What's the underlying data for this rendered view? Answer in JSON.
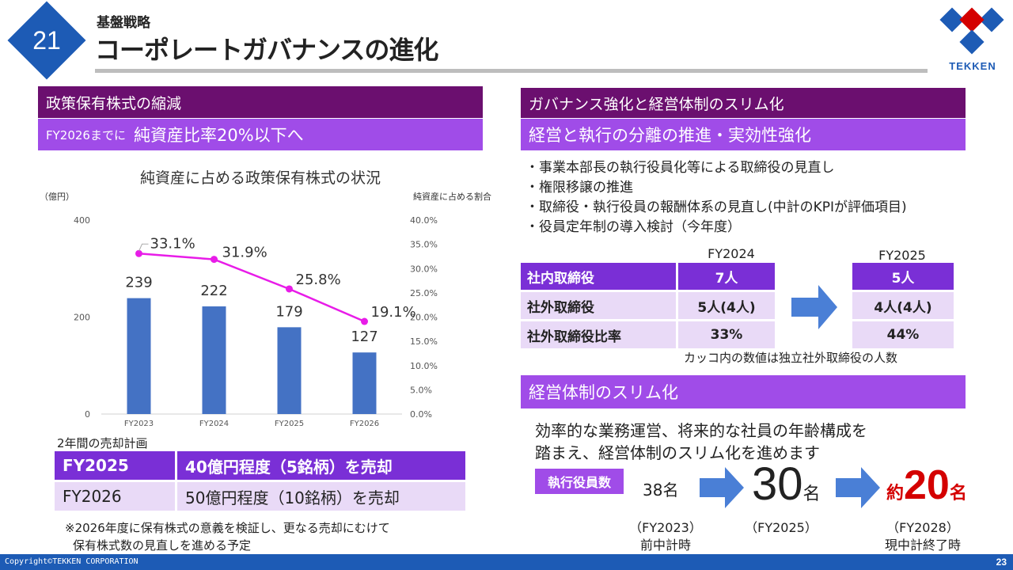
{
  "page": {
    "number_badge": "21",
    "subtitle": "基盤戦略",
    "title": "コーポレートガバナンスの進化",
    "logo_text": "TEKKEN",
    "footer_copyright": "Copyright©TEKKEN CORPORATION",
    "footer_page": "23"
  },
  "left": {
    "header": "政策保有株式の縮減",
    "target_prefix": "FY2026までに",
    "target_main": "純資産比率20%以下へ",
    "plan_caption": "2年間の売却計画",
    "plan_rows": [
      {
        "year": "FY2025",
        "plan": "40億円程度（5銘柄）を売却"
      },
      {
        "year": "FY2026",
        "plan": "50億円程度（10銘柄）を売却"
      }
    ],
    "note_line1": "※2026年度に保有株式の意義を検証し、更なる売却にむけて",
    "note_line2": "保有株式数の見直しを進める予定"
  },
  "chart_data": {
    "type": "bar",
    "title": "純資産に占める政策保有株式の状況",
    "ylabel": "（億円）",
    "y2label": "純資産に占める割合",
    "categories": [
      "FY2023",
      "FY2024",
      "FY2025",
      "FY2026"
    ],
    "ylim": [
      0,
      400
    ],
    "y2lim": [
      0,
      40
    ],
    "yticks": [
      "0",
      "200",
      "400"
    ],
    "y2ticks": [
      "0.0%",
      "5.0%",
      "10.0%",
      "15.0%",
      "20.0%",
      "25.0%",
      "30.0%",
      "35.0%",
      "40.0%"
    ],
    "series": [
      {
        "type": "bar",
        "values": [
          239,
          222,
          179,
          127
        ],
        "color": "#4472c4"
      },
      {
        "type": "line",
        "axis": "right",
        "values": [
          33.1,
          31.9,
          25.8,
          19.1
        ],
        "labels": [
          "33.1%",
          "31.9%",
          "25.8%",
          "19.1%"
        ],
        "color": "#e81ce8"
      }
    ],
    "grid": false
  },
  "right": {
    "header": "ガバナンス強化と経営体制のスリム化",
    "sub_header": "経営と執行の分離の推進・実効性強化",
    "bullets": [
      "・事業本部長の執行役員化等による取締役の見直し",
      "・権限移譲の推進",
      "・取締役・執行役員の報酬体系の見直し(中計のKPIが評価項目)",
      "・役員定年制の導入検討（今年度）"
    ],
    "board": {
      "col_2024": "FY2024",
      "col_2025": "FY2025",
      "rows": [
        {
          "label": "社内取締役",
          "fy2024": "7人",
          "fy2025": "5人"
        },
        {
          "label": "社外取締役",
          "fy2024": "5人(4人)",
          "fy2025": "4人(4人)"
        },
        {
          "label": "社外取締役比率",
          "fy2024": "33%",
          "fy2025": "44%"
        }
      ],
      "note": "カッコ内の数値は独立社外取締役の人数"
    },
    "slim_header": "経営体制のスリム化",
    "slim_text_line1": "効率的な業務運営、将来的な社員の年齢構成を",
    "slim_text_line2": "踏まえ、経営体制のスリム化を進めます",
    "exec_label": "執行役員数",
    "exec": [
      {
        "count": "38名",
        "year": "（FY2023）",
        "note": "前中計時"
      },
      {
        "number": "30",
        "unit": "名",
        "year": "（FY2025）"
      },
      {
        "prefix": "約",
        "number": "20",
        "unit": "名",
        "year": "（FY2028）",
        "note": "現中計終了時"
      }
    ],
    "colors": {
      "dark_purple": "#6b0f6f",
      "purple": "#a04ce8",
      "blue": "#1d5bb5",
      "red": "#d40000",
      "arrow": "#4a7fd6"
    }
  }
}
